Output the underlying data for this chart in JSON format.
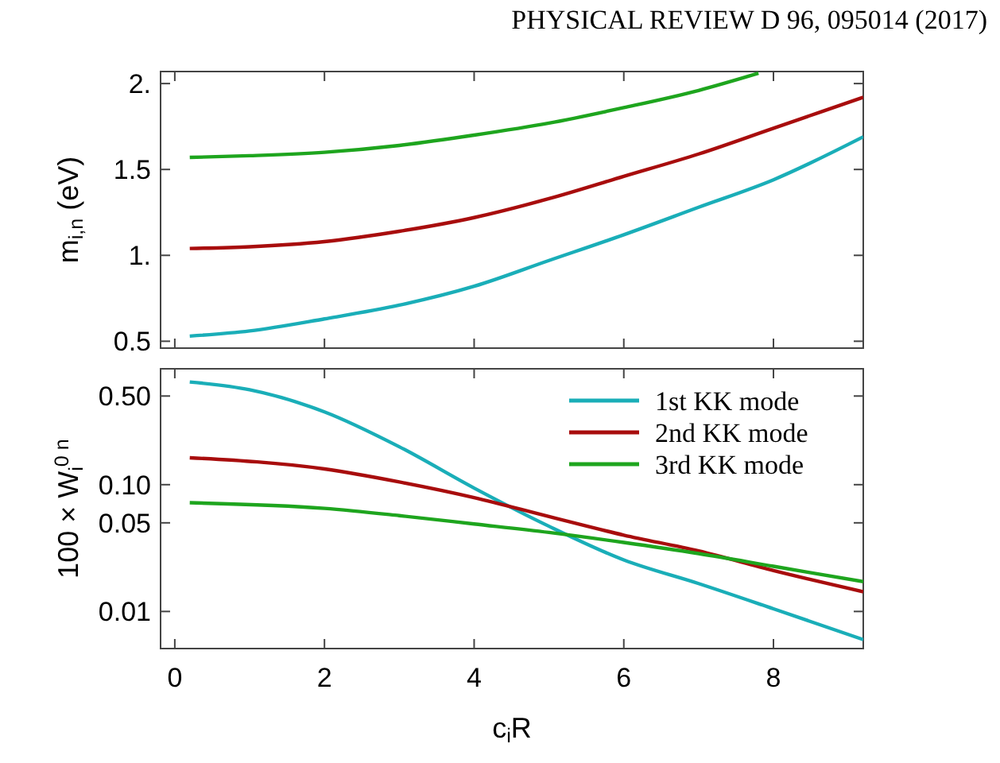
{
  "chart_data": [
    {
      "type": "line",
      "annotations": [
        "PHYSICAL REVIEW D 96, 095014 (2017)"
      ],
      "ylabel": "m$_{i,n}$ (eV)",
      "x": [
        0.2,
        1,
        2,
        3,
        4,
        5,
        6,
        7,
        8,
        9.2
      ],
      "xlim": [
        -0.19,
        9.2
      ],
      "xticks": [
        0,
        2,
        4,
        6,
        8
      ],
      "ylim": [
        0.46,
        2.07
      ],
      "yticks": [
        0.5,
        {
          "value": 1,
          "label": "1."
        },
        1.5,
        {
          "value": 2,
          "label": "2."
        }
      ],
      "tick_labels": "y",
      "series": [
        {
          "color": "#1aaeb8",
          "values": [
            0.53,
            0.56,
            0.63,
            0.71,
            0.82,
            0.97,
            1.12,
            1.28,
            1.44,
            1.69
          ]
        },
        {
          "color": "#a80d0d",
          "values": [
            1.04,
            1.05,
            1.08,
            1.14,
            1.22,
            1.33,
            1.46,
            1.59,
            1.74,
            1.92
          ]
        },
        {
          "color": "#1ea51e",
          "x": [
            0.2,
            1,
            2,
            3,
            4,
            5,
            6,
            7,
            7.8
          ],
          "values": [
            1.57,
            1.58,
            1.6,
            1.64,
            1.7,
            1.77,
            1.86,
            1.96,
            2.06
          ]
        }
      ]
    },
    {
      "type": "line",
      "ylabel": "100 × W$_{i}$$^{0 n}$",
      "xlabel": "c$_{i}$R",
      "x": [
        0.2,
        1,
        2,
        3,
        4,
        5,
        6,
        7,
        8,
        9.2
      ],
      "xlim": [
        -0.19,
        9.2
      ],
      "xticks": [
        0,
        2,
        4,
        6,
        8
      ],
      "log": true,
      "ylim": [
        0.0051,
        0.82
      ],
      "yticks": [
        0.01,
        0.05,
        {
          "value": 0.1,
          "label": "0.10"
        },
        {
          "value": 0.5,
          "label": "0.50"
        }
      ],
      "legend": "top right",
      "series": [
        {
          "name": "1st KK mode",
          "color": "#1aaeb8",
          "values": [
            0.645,
            0.56,
            0.375,
            0.199,
            0.094,
            0.047,
            0.0255,
            0.0166,
            0.0105,
            0.006
          ]
        },
        {
          "name": "2nd KK mode",
          "color": "#a80d0d",
          "x": [
            0.2,
            2,
            3,
            4,
            5,
            6,
            7,
            8,
            9.2
          ],
          "values": [
            0.163,
            0.133,
            0.105,
            0.079,
            0.056,
            0.04,
            0.03,
            0.021,
            0.0143
          ]
        },
        {
          "name": "3rd KK mode",
          "color": "#1ea51e",
          "x": [
            0.2,
            2,
            3,
            4,
            5,
            6,
            7,
            8,
            9.2
          ],
          "values": [
            0.072,
            0.065,
            0.057,
            0.049,
            0.042,
            0.035,
            0.0286,
            0.0227,
            0.0172
          ]
        }
      ]
    }
  ]
}
